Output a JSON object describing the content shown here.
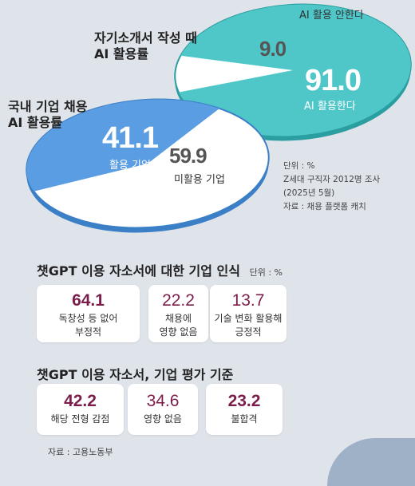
{
  "chart_data": [
    {
      "type": "pie",
      "title": "자기소개서 작성 때 AI 활용률",
      "slices": [
        {
          "label": "AI 활용한다",
          "value": 91.0,
          "color": "#4fc7c9"
        },
        {
          "label": "AI 활용 안한다",
          "value": 9.0,
          "color": "#ffffff"
        }
      ]
    },
    {
      "type": "pie",
      "title": "국내 기업 채용 AI 활용률",
      "slices": [
        {
          "label": "활용 기업",
          "value": 41.1,
          "color": "#5b9de2"
        },
        {
          "label": "미활용 기업",
          "value": 59.9,
          "color": "#ffffff"
        }
      ]
    },
    {
      "type": "table",
      "title": "챗GPT 이용 자소서에 대한 기업 인식",
      "unit": "단위 : %",
      "items": [
        {
          "value": "64.1",
          "label": "독창성 등 없어 부정적"
        },
        {
          "value": "22.2",
          "label": "채용에 영향 없음"
        },
        {
          "value": "13.7",
          "label": "기술 변화 활용해 긍정적"
        }
      ]
    },
    {
      "type": "table",
      "title": "챗GPT 이용 자소서, 기업 평가 기준",
      "items": [
        {
          "value": "42.2",
          "label": "해당 전형 감점"
        },
        {
          "value": "34.6",
          "label": "영향 없음"
        },
        {
          "value": "23.2",
          "label": "불합격"
        }
      ]
    }
  ],
  "pie1": {
    "title_line1": "자기소개서 작성 때",
    "title_line2": "AI 활용률",
    "big_value": "91.0",
    "big_label": "AI 활용한다",
    "small_value": "9.0",
    "small_label": "AI 활용 안한다"
  },
  "pie2": {
    "title_line1": "국내 기업 채용",
    "title_line2": "AI 활용률",
    "big_value": "41.1",
    "big_label": "활용 기업",
    "small_value": "59.9",
    "small_label": "미활용 기업"
  },
  "notes": {
    "unit": "단위 : %",
    "survey": "Z세대 구직자 2012명 조사",
    "date": "(2025년 5월)",
    "source": "자료 : 채용 플랫폼 캐치"
  },
  "section1": {
    "title": "챗GPT 이용 자소서에 대한 기업 인식",
    "unit": "단위 : %",
    "cards": [
      {
        "value": "64.1",
        "line1": "독창성 등 없어",
        "line2": "부정적"
      },
      {
        "value": "22.2",
        "line1": "채용에",
        "line2": "영향 없음"
      },
      {
        "value": "13.7",
        "line1": "기술 변화 활용해",
        "line2": "긍정적"
      }
    ]
  },
  "section2": {
    "title": "챗GPT 이용 자소서, 기업 평가 기준",
    "cards": [
      {
        "value": "42.2",
        "line1": "해당 전형 감점"
      },
      {
        "value": "34.6",
        "line1": "영향 없음"
      },
      {
        "value": "23.2",
        "line1": "불합격"
      }
    ]
  },
  "footer": {
    "source": "자료 : 고용노동부"
  }
}
